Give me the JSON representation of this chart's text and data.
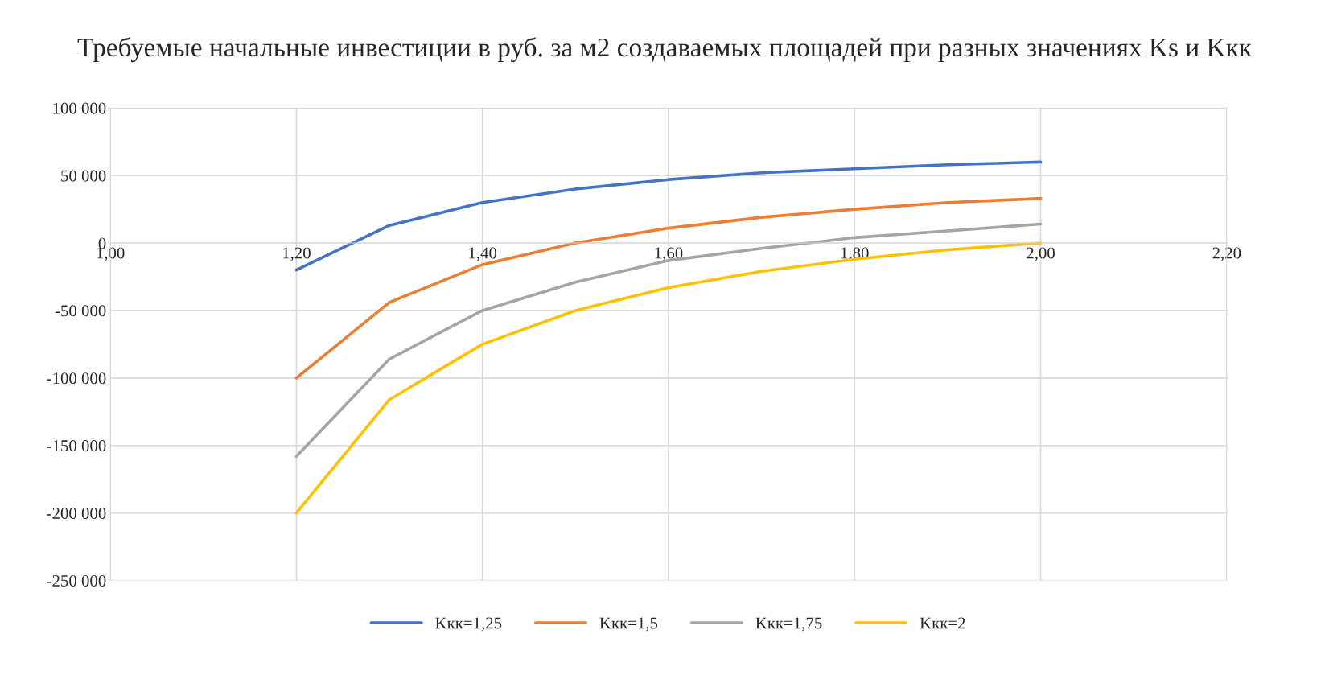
{
  "chart_data": {
    "type": "line",
    "title": "Требуемые начальные инвестиции в руб. за м2 создаваемых площадей при разных значениях Ks и Kкк",
    "x": [
      1.2,
      1.3,
      1.4,
      1.5,
      1.6,
      1.7,
      1.8,
      1.9,
      2.0
    ],
    "series": [
      {
        "name": "Kкк=1,25",
        "color": "#4472c4",
        "values": [
          -20000,
          13000,
          30000,
          40000,
          47000,
          52000,
          55000,
          58000,
          60000
        ]
      },
      {
        "name": "Kкк=1,5",
        "color": "#ed7d31",
        "values": [
          -100000,
          -44000,
          -16000,
          0,
          11000,
          19000,
          25000,
          30000,
          33000
        ]
      },
      {
        "name": "Kкк=1,75",
        "color": "#a5a5a5",
        "values": [
          -158000,
          -86000,
          -50000,
          -29000,
          -13000,
          -4000,
          4000,
          9000,
          14000
        ]
      },
      {
        "name": "Kкк=2",
        "color": "#ffc000",
        "values": [
          -200000,
          -116000,
          -75000,
          -50000,
          -33000,
          -21000,
          -12000,
          -5000,
          0
        ]
      }
    ],
    "xlim": [
      1.0,
      2.2
    ],
    "xticks": [
      {
        "value": 1.0,
        "label": "1,00"
      },
      {
        "value": 1.2,
        "label": "1,20"
      },
      {
        "value": 1.4,
        "label": "1,40"
      },
      {
        "value": 1.6,
        "label": "1,60"
      },
      {
        "value": 1.8,
        "label": "1,80"
      },
      {
        "value": 2.0,
        "label": "2,00"
      },
      {
        "value": 2.2,
        "label": "2,20"
      }
    ],
    "ylim": [
      -250000,
      100000
    ],
    "yticks": [
      {
        "value": -250000,
        "label": "-250 000"
      },
      {
        "value": -200000,
        "label": "-200 000"
      },
      {
        "value": -150000,
        "label": "-150 000"
      },
      {
        "value": -100000,
        "label": "-100 000"
      },
      {
        "value": -50000,
        "label": "-50 000"
      },
      0,
      {
        "value": 50000,
        "label": "50 000"
      },
      {
        "value": 100000,
        "label": "100 000"
      }
    ],
    "grid": true,
    "legend": "bottom",
    "marker": "none",
    "line_style": "solid"
  }
}
